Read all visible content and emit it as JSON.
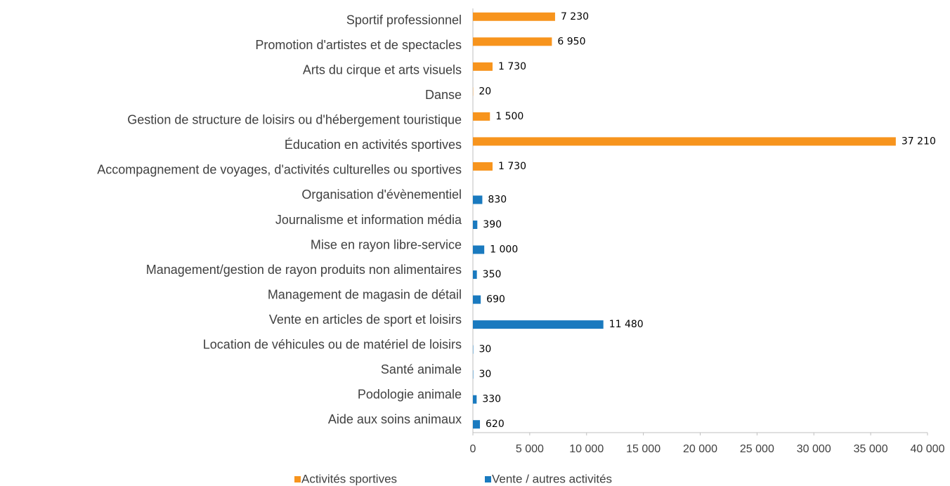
{
  "chart_data": {
    "type": "bar",
    "orientation": "horizontal",
    "categories": [
      "Sportif professionnel",
      "Promotion d'artistes et de spectacles",
      "Arts du cirque et arts visuels",
      "Danse",
      "Gestion de structure de loisirs ou d'hébergement touristique",
      "Éducation en activités sportives",
      "Accompagnement de voyages, d'activités culturelles ou sportives",
      "Organisation d'évènementiel",
      "Journalisme et information média",
      "Mise en rayon libre-service",
      "Management/gestion de rayon produits non alimentaires",
      "Management de magasin de détail",
      "Vente en articles de sport et loisirs",
      "Location de véhicules ou de matériel de loisirs",
      "Santé animale",
      "Podologie animale",
      "Aide aux soins animaux"
    ],
    "series": [
      {
        "name": "Activités sportives",
        "color": "#f7941d",
        "values": [
          7230,
          6950,
          1730,
          20,
          1500,
          37210,
          1730,
          null,
          null,
          null,
          null,
          null,
          null,
          null,
          null,
          null,
          null
        ],
        "value_labels": [
          "7 230",
          "6 950",
          "1 730",
          "20",
          "1 500",
          "37 210",
          "1 730",
          null,
          null,
          null,
          null,
          null,
          null,
          null,
          null,
          null,
          null
        ]
      },
      {
        "name": "Vente / autres activités",
        "color": "#1a7abf",
        "values": [
          null,
          null,
          null,
          null,
          null,
          null,
          null,
          830,
          390,
          1000,
          350,
          690,
          11480,
          30,
          30,
          330,
          620
        ],
        "value_labels": [
          null,
          null,
          null,
          null,
          null,
          null,
          null,
          "830",
          "390",
          "1 000",
          "350",
          "690",
          "11 480",
          "30",
          "30",
          "330",
          "620"
        ]
      }
    ],
    "xlim": [
      0,
      40000
    ],
    "xticks": [
      0,
      {
        "value": 5000,
        "label": "5 000"
      },
      {
        "value": 10000,
        "label": "10 000"
      },
      {
        "value": 15000,
        "label": "15 000"
      },
      {
        "value": 20000,
        "label": "20 000"
      },
      {
        "value": 25000,
        "label": "25 000"
      },
      {
        "value": 30000,
        "label": "30 000"
      },
      {
        "value": 35000,
        "label": "35 000"
      },
      {
        "value": 40000,
        "label": "40 000"
      }
    ],
    "grid": false,
    "legend": "bottom"
  }
}
